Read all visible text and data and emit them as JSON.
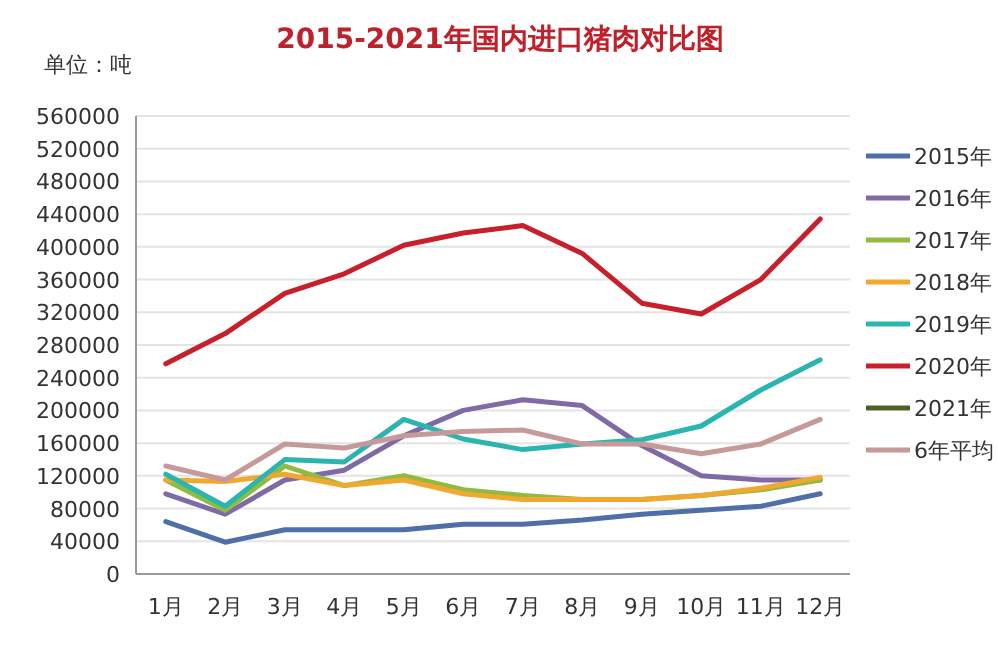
{
  "chart_data": {
    "type": "line",
    "title": "2015-2021年国内进口猪肉对比图",
    "annotations": [
      "单位：吨"
    ],
    "categories": [
      "1月",
      "2月",
      "3月",
      "4月",
      "5月",
      "6月",
      "7月",
      "8月",
      "9月",
      "10月",
      "11月",
      "12月"
    ],
    "ylim": [
      0,
      560000
    ],
    "yticks": [
      0,
      40000,
      80000,
      120000,
      160000,
      200000,
      240000,
      280000,
      320000,
      360000,
      400000,
      440000,
      480000,
      520000,
      560000
    ],
    "grid": "y",
    "legend": "right",
    "series": [
      {
        "name": "2015年",
        "color": "#4f6fa8",
        "values": [
          64000,
          39000,
          54000,
          54000,
          54000,
          61000,
          61000,
          66000,
          73000,
          78000,
          83000,
          98000
        ]
      },
      {
        "name": "2016年",
        "color": "#7f6aa6",
        "values": [
          98000,
          73000,
          115000,
          127000,
          169000,
          200000,
          213000,
          206000,
          157000,
          120000,
          115000,
          115000
        ]
      },
      {
        "name": "2017年",
        "color": "#8fbc3f",
        "values": [
          115000,
          78000,
          132000,
          108000,
          120000,
          103000,
          96000,
          91000,
          91000,
          96000,
          103000,
          115000
        ]
      },
      {
        "name": "2018年",
        "color": "#f0a830",
        "values": [
          115000,
          113000,
          122000,
          108000,
          115000,
          98000,
          91000,
          91000,
          91000,
          96000,
          105000,
          118000
        ]
      },
      {
        "name": "2019年",
        "color": "#2ab5b0",
        "values": [
          122000,
          83000,
          140000,
          137000,
          189000,
          165000,
          152000,
          159000,
          164000,
          181000,
          225000,
          262000
        ]
      },
      {
        "name": "2020年",
        "color": "#c8202a",
        "values": [
          257000,
          294000,
          343000,
          367000,
          402000,
          417000,
          426000,
          392000,
          331000,
          318000,
          360000,
          434000
        ]
      },
      {
        "name": "2021年",
        "color": "#4f6228",
        "values": [
          null,
          null,
          null,
          null,
          null,
          null,
          null,
          null,
          null,
          null,
          null,
          null
        ]
      },
      {
        "name": "6年平均",
        "color": "#c79a9a",
        "values": [
          132000,
          115000,
          159000,
          154000,
          169000,
          174000,
          176000,
          159000,
          159000,
          147000,
          159000,
          189000
        ]
      }
    ]
  }
}
